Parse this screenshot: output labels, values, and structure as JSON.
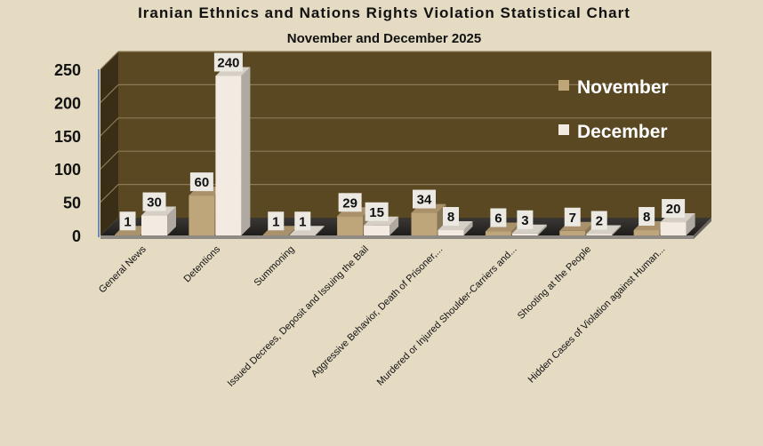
{
  "chart_data": {
    "type": "bar",
    "title": "Iranian Ethnics and Nations Rights Violation Statistical Chart",
    "subtitle": "November and December 2025",
    "categories": [
      "General News",
      "Detentions",
      "Summoning",
      "Issued Decrees, Deposit and Issuing the Bail",
      "Aggressive Behavior, Death of Prisoner,...",
      "Murdered or Injured Shoulder-Carriers and...",
      "Shooting at the People",
      "Hidden Cases of Violation against Human..."
    ],
    "series": [
      {
        "name": "November",
        "values": [
          1,
          60,
          1,
          29,
          34,
          6,
          7,
          8
        ],
        "color": "#BFA57A"
      },
      {
        "name": "December",
        "values": [
          30,
          240,
          1,
          15,
          8,
          3,
          2,
          20
        ],
        "color": "#F3EBE1"
      }
    ],
    "yticks": [
      "0",
      "50",
      "100",
      "150",
      "200",
      "250"
    ],
    "ylim": [
      0,
      250
    ],
    "grid": true,
    "legend_position": "top-right",
    "colors": {
      "page_background": "#E5DAC2",
      "plot_background": "#5A4823",
      "plot_side_wall": "#3A2E16",
      "floor": "#2E2B28",
      "gridline": "#8C7A56"
    }
  }
}
